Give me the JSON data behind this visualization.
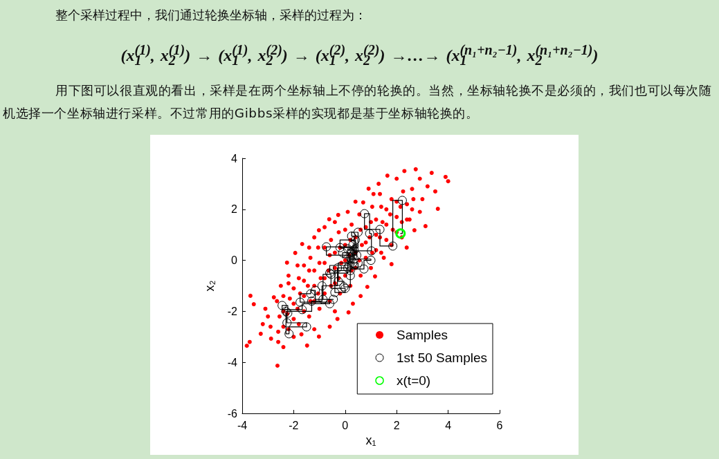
{
  "chart_data": {
    "type": "scatter",
    "annotations": [
      "整个采样过程中，我们通过轮换坐标轴，采样的过程为：",
      "(x$_{1}$$^{(1)}$, x$_{2}$$^{(1)}$) → (x$_{1}$$^{(1)}$, x$_{2}$$^{(2)}$) → (x$_{1}$$^{(2)}$, x$_{2}$$^{(2)}$) →…→ (x$_{1}$$^{(n₁+n₂−1)}$, x$_{2}$$^{(n₁+n₂−1)}$)",
      "用下图可以很直观的看出，采样是在两个坐标轴上不停的轮换的。当然，坐标轴轮换不是必须的，我们也可以每次随机选择一个坐标轴进行采样。不过常用的Gibbs采样的实现都是基于坐标轴轮换的。"
    ],
    "xlabel": "x₁",
    "ylabel": "x₂",
    "xlim": [
      -4,
      6
    ],
    "ylim": [
      -6,
      4
    ],
    "xticks": [
      -4,
      -2,
      0,
      2,
      4,
      6
    ],
    "yticks": [
      -6,
      -4,
      -2,
      0,
      2,
      4
    ],
    "marker": "circle",
    "legend": "bottom right",
    "series": [
      {
        "name": "Samples",
        "color": "#ff0000",
        "x": [
          -3.82,
          -3.71,
          -3.28,
          -2.88,
          -2.63,
          -3.68,
          -3.55,
          -2.77,
          -2.26,
          -1.94,
          -1.67,
          -1.02,
          -0.62,
          -0.27,
          0.7,
          0.91,
          1.64,
          2.74,
          3.36,
          3.9,
          4.0,
          3.6,
          3.12,
          2.69,
          2.39,
          1.8,
          1.16,
          0.86,
          0.13,
          -1.02,
          -1.48,
          -3.2,
          -3.0,
          -2.9,
          -2.6,
          -2.4,
          -2.0,
          -1.7,
          -3.1,
          -2.5,
          -2.2,
          -1.4,
          -1.2,
          -0.8,
          -0.4,
          0.1,
          0.4,
          1.1,
          1.3,
          2.0,
          2.3,
          2.9,
          3.2,
          3.5,
          2.6,
          3.0,
          2.5,
          2.9,
          2.2,
          1.5,
          0.6,
          0.3,
          -0.3,
          -0.6,
          -0.4,
          -1.2,
          -2.6,
          -2.55,
          -2.65,
          -2.2,
          -2.25,
          -2.15,
          -2.2,
          -1.8,
          -1.85,
          -1.75,
          -1.8,
          -1.85,
          -1.4,
          -1.35,
          -1.45,
          -1.4,
          -1.35,
          -1.0,
          -1.05,
          -0.95,
          -1.0,
          -1.05,
          -0.6,
          -0.55,
          -0.65,
          -0.6,
          -0.55,
          -0.2,
          -0.25,
          -0.15,
          -0.2,
          -0.25,
          0.2,
          0.25,
          0.15,
          0.2,
          0.25,
          0.6,
          0.55,
          0.65,
          0.6,
          0.55,
          1.0,
          1.05,
          0.95,
          1.0,
          1.05,
          1.4,
          1.35,
          1.45,
          1.4,
          1.35,
          1.8,
          1.85,
          1.75,
          1.8,
          2.2,
          2.15,
          2.25,
          2.6,
          2.65,
          -2.4,
          -2.4,
          -2.4,
          -2.0,
          -2.0,
          -2.0,
          -1.6,
          -1.6,
          -1.6,
          -1.6,
          -1.2,
          -1.2,
          -1.2,
          -0.8,
          -0.8,
          -0.8,
          -0.8,
          -0.4,
          -0.4,
          -0.4,
          0.0,
          0.0,
          0.0,
          0.0,
          0.4,
          0.4,
          0.4,
          0.8,
          0.8,
          0.8,
          1.2,
          1.2,
          1.2,
          1.6,
          1.6,
          1.6,
          2.0,
          2.0,
          2.0,
          2.4,
          2.4
        ],
        "values": [
          -3.35,
          -3.2,
          -2.88,
          -3.07,
          -4.13,
          -1.39,
          -1.72,
          -1.45,
          -0.09,
          0.29,
          0.64,
          1.18,
          1.61,
          1.78,
          2.27,
          2.81,
          3.32,
          3.57,
          3.43,
          3.27,
          3.1,
          2.02,
          1.34,
          1.18,
          0.5,
          -0.15,
          -0.63,
          -1.04,
          -2.04,
          -2.99,
          -3.34,
          -2.5,
          -2.2,
          -2.6,
          -3.2,
          -3.4,
          -3.0,
          -2.9,
          -1.9,
          -1.0,
          -0.6,
          0.5,
          0.9,
          1.3,
          1.5,
          1.9,
          2.3,
          2.6,
          3.0,
          3.2,
          3.5,
          3.2,
          2.9,
          2.7,
          2.8,
          2.4,
          1.6,
          1.9,
          0.9,
          0.1,
          -1.4,
          -1.7,
          -2.3,
          -2.6,
          -2.0,
          -2.7,
          -2.8,
          -2.2,
          -1.6,
          -2.7,
          -2.1,
          -1.5,
          -0.9,
          -2.5,
          -1.9,
          -1.3,
          -0.7,
          -0.2,
          -2.2,
          -1.6,
          -1.0,
          -0.4,
          0.1,
          -1.9,
          -1.3,
          -0.7,
          -0.1,
          0.5,
          -1.6,
          -1.0,
          -0.4,
          0.2,
          0.8,
          -1.3,
          -0.7,
          -0.1,
          0.5,
          1.1,
          -1.0,
          -0.4,
          0.2,
          0.8,
          1.4,
          -0.6,
          0.0,
          0.6,
          1.2,
          1.8,
          -0.3,
          0.3,
          0.9,
          1.5,
          2.1,
          0.3,
          0.9,
          1.5,
          2.1,
          2.6,
          0.6,
          1.2,
          1.8,
          2.4,
          1.5,
          2.1,
          2.7,
          2.0,
          2.4,
          -2.6,
          -2.0,
          -1.4,
          -2.3,
          -1.7,
          -1.1,
          -2.0,
          -1.4,
          -0.8,
          -0.2,
          -1.6,
          -1.0,
          -0.4,
          -1.3,
          -0.7,
          -0.1,
          0.5,
          -0.9,
          -0.3,
          0.3,
          -0.6,
          0.0,
          0.6,
          1.2,
          -0.3,
          0.3,
          0.9,
          0.1,
          0.7,
          1.3,
          0.4,
          1.0,
          1.6,
          0.8,
          1.4,
          2.0,
          1.1,
          1.7,
          2.3,
          1.6,
          2.2
        ]
      },
      {
        "name": "1st 50 Samples",
        "type": "step",
        "color": "#000000",
        "x": [
          2.15,
          2.22,
          1.85,
          1.35,
          0.75,
          0.95,
          1.02,
          0.3,
          0.45,
          -0.73,
          0.35,
          1.0,
          0.73,
          0.25,
          0.15,
          -0.6,
          0.1,
          0.3,
          -0.27,
          -0.05,
          0.2,
          -0.4,
          0.0,
          -0.55,
          -0.86,
          -0.46,
          -1.16,
          -1.34,
          -1.75,
          -0.6,
          -1.67,
          -2.45,
          -2.23,
          -2.26,
          -1.5,
          -2.18,
          -2.3,
          -1.3,
          -0.9,
          -0.3,
          0.2,
          -0.1,
          0.4,
          -0.2,
          0.5,
          0.25,
          0.35,
          0.1,
          0.5,
          0.3,
          0.2
        ],
        "values": [
          1.05,
          2.35,
          0.56,
          1.21,
          1.83,
          1.05,
          0.37,
          0.6,
          0.2,
          0.53,
          0.05,
          0.0,
          -0.34,
          0.3,
          -0.2,
          -0.5,
          0.45,
          -0.1,
          -0.82,
          -1.04,
          -0.4,
          -1.26,
          -1.1,
          -0.55,
          -1.53,
          -1.53,
          -1.18,
          -1.31,
          -1.64,
          -1.7,
          -1.93,
          -1.77,
          -2.07,
          -2.45,
          -2.61,
          -2.88,
          -2.0,
          -1.6,
          -1.0,
          -0.3,
          0.1,
          0.3,
          0.8,
          0.5,
          1.1,
          0.95,
          0.4,
          -0.3,
          -0.1,
          0.2,
          -0.6
        ]
      },
      {
        "name": "x(t=0)",
        "color": "#00ff00",
        "x": [
          2.15
        ],
        "values": [
          1.05
        ]
      }
    ]
  }
}
